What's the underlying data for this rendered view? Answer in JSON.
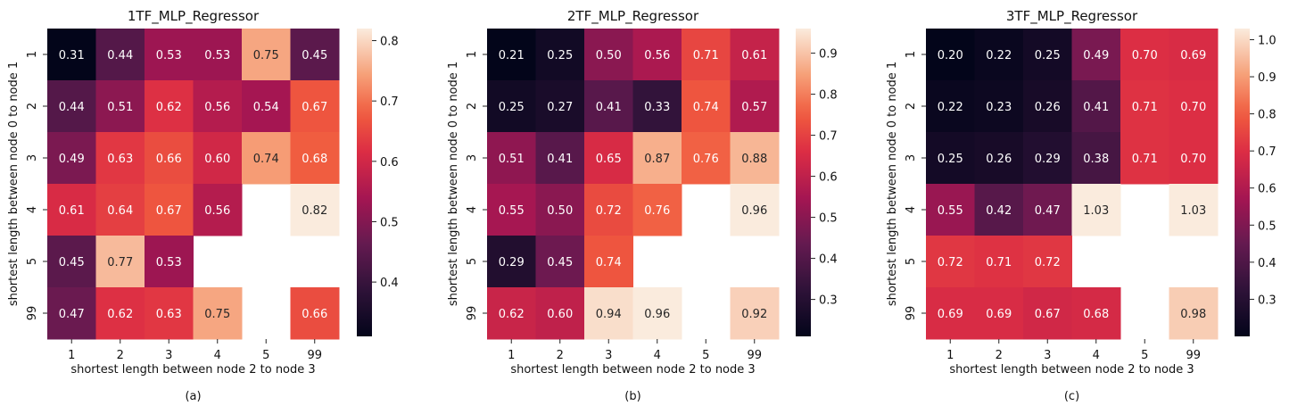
{
  "chart_data": [
    {
      "type": "heatmap",
      "title": "1TF_MLP_Regressor",
      "xlabel": "shortest length between node 2 to node 3",
      "ylabel": "shortest length between node 0 to node 1",
      "x_categories": [
        "1",
        "2",
        "3",
        "4",
        "5",
        "99"
      ],
      "y_categories": [
        "1",
        "2",
        "3",
        "4",
        "5",
        "99"
      ],
      "values": [
        [
          0.31,
          0.44,
          0.53,
          0.53,
          0.75,
          0.45
        ],
        [
          0.44,
          0.51,
          0.62,
          0.56,
          0.54,
          0.67
        ],
        [
          0.49,
          0.63,
          0.66,
          0.6,
          0.74,
          0.68
        ],
        [
          0.61,
          0.64,
          0.67,
          0.56,
          null,
          0.82
        ],
        [
          0.45,
          0.77,
          0.53,
          null,
          null,
          null
        ],
        [
          0.47,
          0.62,
          0.63,
          0.75,
          null,
          0.66
        ]
      ],
      "vmin": 0.31,
      "vmax": 0.82,
      "colorbar_ticks": [
        "0.4",
        "0.5",
        "0.6",
        "0.7",
        "0.8"
      ],
      "caption": "(a)"
    },
    {
      "type": "heatmap",
      "title": "2TF_MLP_Regressor",
      "xlabel": "shortest length between node 2 to node 3",
      "ylabel": "shortest length between node 0 to node 1",
      "x_categories": [
        "1",
        "2",
        "3",
        "4",
        "5",
        "99"
      ],
      "y_categories": [
        "1",
        "2",
        "3",
        "4",
        "5",
        "99"
      ],
      "values": [
        [
          0.21,
          0.25,
          0.5,
          0.56,
          0.71,
          0.61
        ],
        [
          0.25,
          0.27,
          0.41,
          0.33,
          0.74,
          0.57
        ],
        [
          0.51,
          0.41,
          0.65,
          0.87,
          0.76,
          0.88
        ],
        [
          0.55,
          0.5,
          0.72,
          0.76,
          null,
          0.96
        ],
        [
          0.29,
          0.45,
          0.74,
          null,
          null,
          null
        ],
        [
          0.62,
          0.6,
          0.94,
          0.96,
          null,
          0.92
        ]
      ],
      "vmin": 0.21,
      "vmax": 0.96,
      "colorbar_ticks": [
        "0.3",
        "0.4",
        "0.5",
        "0.6",
        "0.7",
        "0.8",
        "0.9"
      ],
      "caption": "(b)"
    },
    {
      "type": "heatmap",
      "title": "3TF_MLP_Regressor",
      "xlabel": "shortest length between node 2 to node 3",
      "ylabel": "shortest length between node 0 to node 1",
      "x_categories": [
        "1",
        "2",
        "3",
        "4",
        "5",
        "99"
      ],
      "y_categories": [
        "1",
        "2",
        "3",
        "4",
        "5",
        "99"
      ],
      "values": [
        [
          0.2,
          0.22,
          0.25,
          0.49,
          0.7,
          0.69
        ],
        [
          0.22,
          0.23,
          0.26,
          0.41,
          0.71,
          0.7
        ],
        [
          0.25,
          0.26,
          0.29,
          0.38,
          0.71,
          0.7
        ],
        [
          0.55,
          0.42,
          0.47,
          1.03,
          null,
          1.03
        ],
        [
          0.72,
          0.71,
          0.72,
          null,
          null,
          null
        ],
        [
          0.69,
          0.69,
          0.67,
          0.68,
          null,
          0.98
        ]
      ],
      "vmin": 0.2,
      "vmax": 1.03,
      "colorbar_ticks": [
        "0.3",
        "0.4",
        "0.5",
        "0.6",
        "0.7",
        "0.8",
        "0.9",
        "1.0"
      ],
      "caption": "(c)"
    }
  ]
}
